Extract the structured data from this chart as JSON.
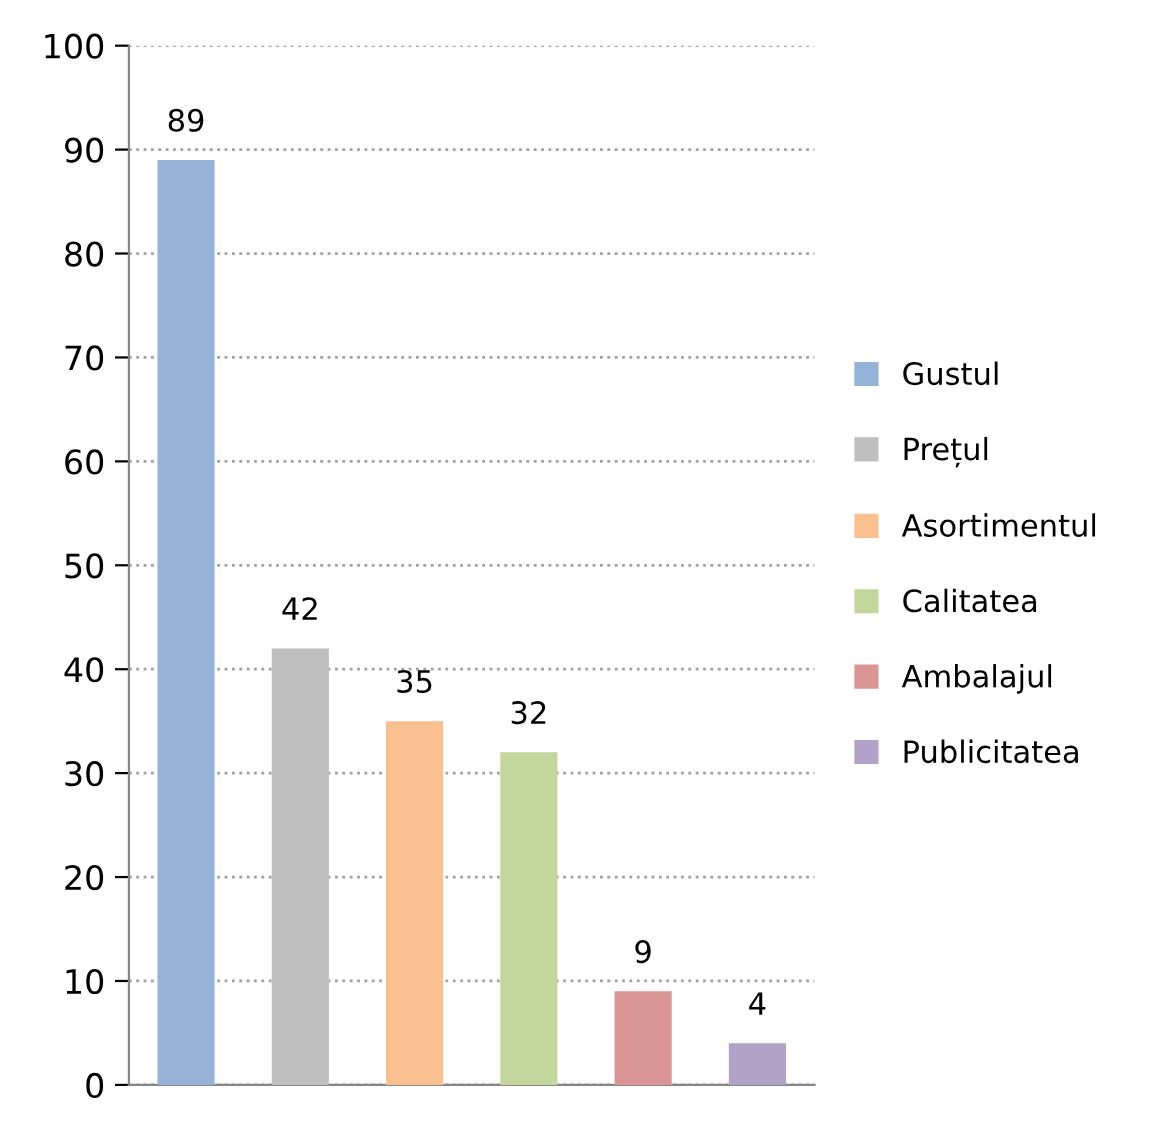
{
  "chart_data": {
    "type": "bar",
    "categories": [
      null
    ],
    "series": [
      {
        "name": "Gustul",
        "color": "#95b3d7",
        "values": [
          89
        ]
      },
      {
        "name": "Prețul",
        "color": "#bfbfbf",
        "values": [
          42
        ]
      },
      {
        "name": "Asortimentul",
        "color": "#fac090",
        "values": [
          35
        ]
      },
      {
        "name": "Calitatea",
        "color": "#c3d69b",
        "values": [
          32
        ]
      },
      {
        "name": "Ambalajul",
        "color": "#d99694",
        "values": [
          9
        ]
      },
      {
        "name": "Publicitatea",
        "color": "#b3a2c7",
        "values": [
          4
        ]
      }
    ],
    "ylim": [
      0,
      100
    ],
    "yticks": [
      0,
      10,
      20,
      30,
      40,
      50,
      60,
      70,
      80,
      90,
      100
    ],
    "grid": "y",
    "legend": "right",
    "data_labels": true
  }
}
